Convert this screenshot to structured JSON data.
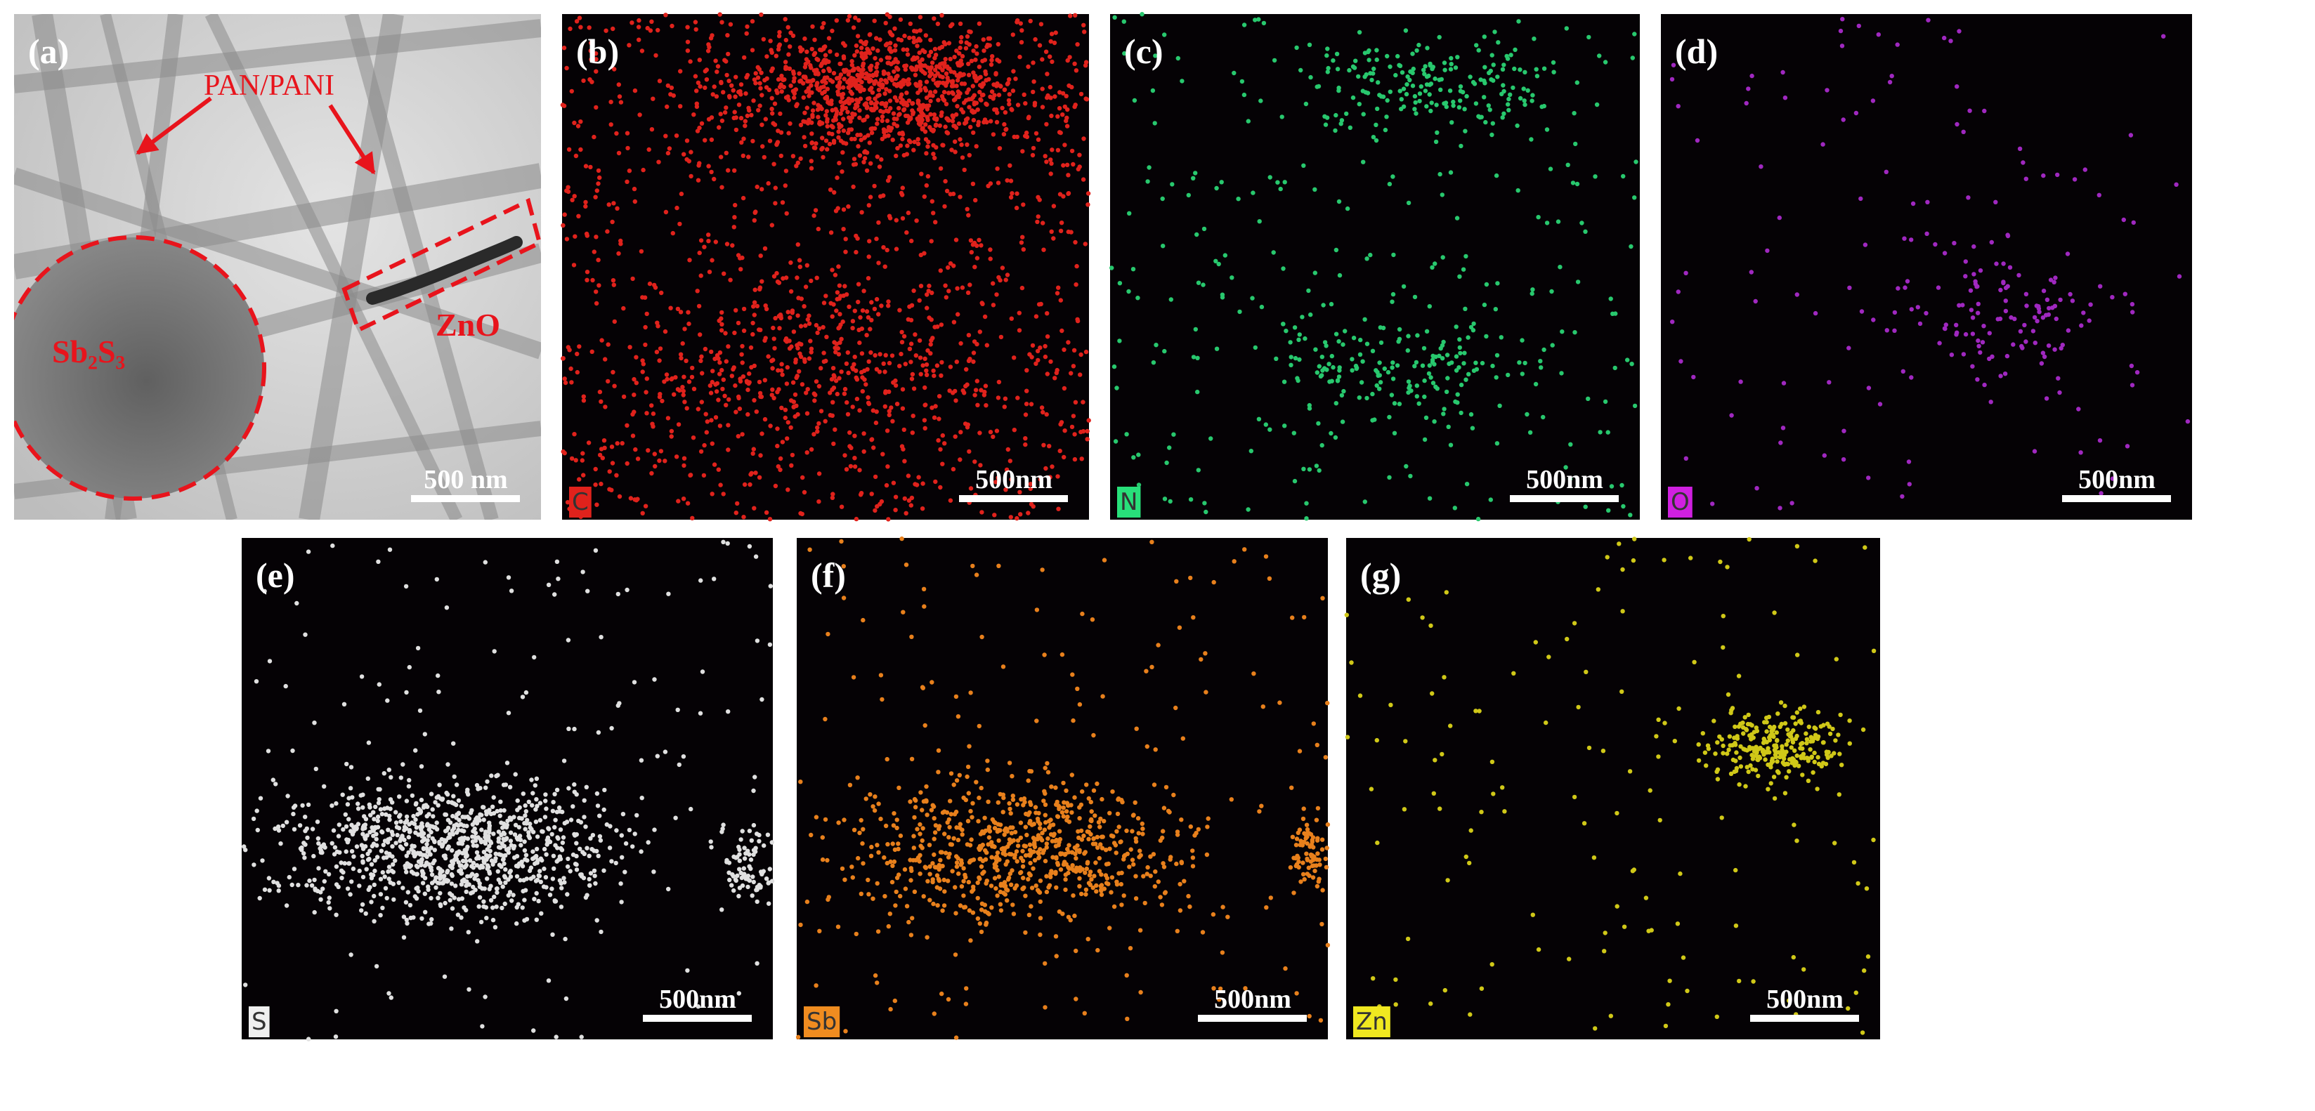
{
  "panels": [
    {
      "label": "(a)",
      "scale_bar": "500 nm",
      "annotations": {
        "fibers": "PAN/PANI",
        "rod": "ZnO",
        "particle": "Sb₂S₃"
      }
    },
    {
      "label": "(b)",
      "element": "C",
      "scale_bar": "500nm"
    },
    {
      "label": "(c)",
      "element": "N",
      "scale_bar": "500nm"
    },
    {
      "label": "(d)",
      "element": "O",
      "scale_bar": "500nm"
    },
    {
      "label": "(e)",
      "element": "S",
      "scale_bar": "500nm"
    },
    {
      "label": "(f)",
      "element": "Sb",
      "scale_bar": "500nm"
    },
    {
      "label": "(g)",
      "element": "Zn",
      "scale_bar": "500nm"
    }
  ]
}
